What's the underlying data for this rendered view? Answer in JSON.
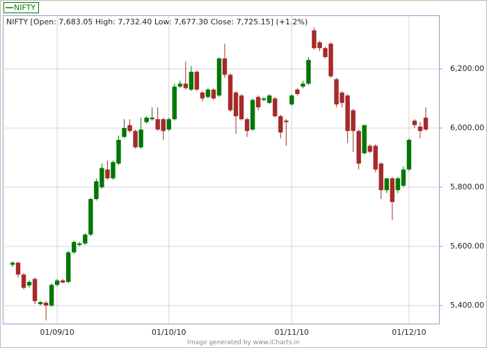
{
  "chart_data": {
    "type": "candlestick",
    "title": "NIFTY [Open: 7,683.05  High: 7,732.40  Low: 7,677.30  Close: 7,725.15] (+1.2%)",
    "footer": "Image generated by www.iCharts.in",
    "categories": [
      null,
      null,
      null,
      null,
      null,
      null,
      null,
      null,
      "01/09/10",
      null,
      null,
      null,
      null,
      null,
      null,
      null,
      null,
      null,
      null,
      null,
      null,
      null,
      null,
      null,
      null,
      null,
      null,
      null,
      "01/10/10",
      null,
      null,
      null,
      null,
      null,
      null,
      null,
      null,
      null,
      null,
      null,
      null,
      null,
      null,
      null,
      null,
      null,
      null,
      null,
      null,
      null,
      "01/11/10",
      null,
      null,
      null,
      null,
      null,
      null,
      null,
      null,
      null,
      null,
      null,
      null,
      null,
      null,
      null,
      null,
      null,
      null,
      null,
      null,
      "01/12/10",
      null,
      null,
      null
    ],
    "series": [
      {
        "name": "NIFTY",
        "color": "#007700",
        "down_color": "#a52a2a",
        "open": [
          5538,
          5545,
          5505,
          5468,
          5490,
          5405,
          5410,
          5400,
          5470,
          5485,
          5480,
          5580,
          5605,
          5610,
          5640,
          5760,
          5800,
          5860,
          5830,
          5880,
          5970,
          6010,
          5990,
          5935,
          6020,
          6030,
          6030,
          6030,
          5995,
          6030,
          6140,
          6150,
          6130,
          6190,
          6120,
          6105,
          6130,
          6110,
          6235,
          6180,
          6120,
          6110,
          6030,
          5995,
          6105,
          6095,
          6085,
          6100,
          6040,
          6025,
          6080,
          6130,
          6140,
          6150,
          6330,
          6290,
          6270,
          6285,
          6165,
          6120,
          6110,
          6060,
          5990,
          5915,
          5940,
          5940,
          5880,
          5790,
          5830,
          5790,
          5805,
          5860,
          6025,
          6005,
          6035
        ],
        "high": [
          5550,
          5548,
          5510,
          5485,
          5495,
          5415,
          5415,
          5475,
          5490,
          5490,
          5585,
          5620,
          5615,
          5645,
          5765,
          5830,
          5880,
          5890,
          5890,
          5975,
          6030,
          6030,
          5995,
          6035,
          6040,
          6070,
          6070,
          6035,
          6035,
          6150,
          6160,
          6225,
          6210,
          6195,
          6125,
          6135,
          6135,
          6240,
          6285,
          6185,
          6125,
          6115,
          6035,
          6100,
          6110,
          6105,
          6115,
          6105,
          6045,
          6030,
          6115,
          6135,
          6160,
          6240,
          6340,
          6295,
          6275,
          6290,
          6170,
          6125,
          6115,
          6065,
          5995,
          6010,
          5945,
          5945,
          5885,
          5830,
          5835,
          5835,
          5870,
          5965,
          6030,
          6020,
          6070
        ],
        "low": [
          5530,
          5495,
          5455,
          5460,
          5405,
          5400,
          5350,
          5395,
          5465,
          5475,
          5475,
          5575,
          5600,
          5605,
          5635,
          5755,
          5795,
          5825,
          5825,
          5875,
          5965,
          5985,
          5930,
          5930,
          6015,
          6025,
          5990,
          5960,
          5990,
          6025,
          6135,
          6130,
          6125,
          6125,
          6090,
          6100,
          6095,
          6105,
          6170,
          6055,
          5980,
          6025,
          5970,
          5990,
          6060,
          6090,
          6080,
          6035,
          5965,
          5940,
          6075,
          6110,
          6135,
          6145,
          6265,
          6260,
          6235,
          6170,
          6070,
          6070,
          5950,
          5920,
          5860,
          5910,
          5915,
          5850,
          5760,
          5780,
          5690,
          5780,
          5800,
          5855,
          6000,
          5965,
          5990
        ],
        "close": [
          5545,
          5505,
          5460,
          5480,
          5415,
          5412,
          5400,
          5470,
          5485,
          5478,
          5580,
          5615,
          5610,
          5640,
          5760,
          5820,
          5865,
          5830,
          5885,
          5960,
          6000,
          5990,
          5935,
          5995,
          6035,
          6035,
          5995,
          5990,
          6030,
          6140,
          6150,
          6135,
          6190,
          6130,
          6100,
          6130,
          6100,
          6235,
          6180,
          6060,
          6040,
          6030,
          5990,
          6095,
          6070,
          6100,
          6110,
          6040,
          5985,
          6020,
          6110,
          6115,
          6150,
          6230,
          6270,
          6270,
          6240,
          6175,
          6080,
          6085,
          5990,
          5990,
          5880,
          6010,
          5920,
          5860,
          5790,
          5830,
          5750,
          5830,
          5860,
          5960,
          6010,
          5990,
          5995
        ]
      }
    ],
    "ylim": [
      5339,
      6381
    ],
    "yticks": [
      {
        "value": 5400,
        "label": "5,400.00"
      },
      {
        "value": 5600,
        "label": "5,600.00"
      },
      {
        "value": 5800,
        "label": "5,800.00"
      },
      {
        "value": 6000,
        "label": "6,000.00"
      },
      {
        "value": 6200,
        "label": "6,200.00"
      }
    ],
    "grid": true
  }
}
